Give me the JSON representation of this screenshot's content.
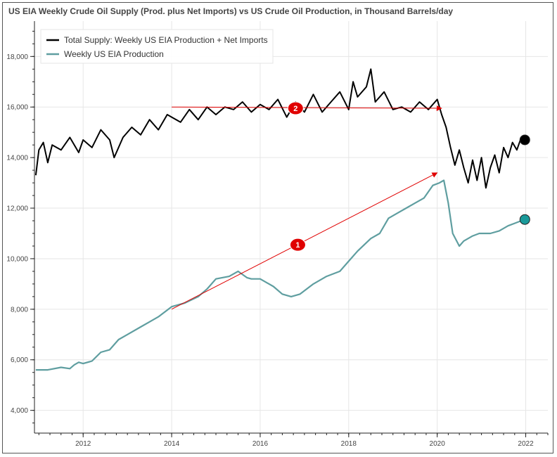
{
  "chart_data": {
    "type": "line",
    "title": "US EIA Weekly Crude Oil Supply (Prod. plus Net Imports) vs US Crude Oil Production, in Thousand Barrels/day",
    "xlabel": "",
    "ylabel": "",
    "xlim": [
      2010.9,
      2022.5
    ],
    "ylim": [
      3100,
      19400
    ],
    "grid": true,
    "legend_position": "top-left",
    "x_ticks": [
      2012,
      2014,
      2016,
      2018,
      2020,
      2022
    ],
    "y_ticks": [
      4000,
      6000,
      8000,
      10000,
      12000,
      14000,
      16000,
      18000
    ],
    "x_tick_labels": [
      "2012",
      "2014",
      "2016",
      "2018",
      "2020",
      "2022"
    ],
    "y_tick_labels": [
      "4,000",
      "6,000",
      "8,000",
      "10,000",
      "12,000",
      "14,000",
      "16,000",
      "18,000"
    ],
    "series": [
      {
        "name": "Total Supply: Weekly US EIA Production +  Net Imports",
        "color": "#000000",
        "x": [
          2010.93,
          2011.0,
          2011.1,
          2011.2,
          2011.3,
          2011.5,
          2011.7,
          2011.9,
          2012.0,
          2012.2,
          2012.4,
          2012.6,
          2012.7,
          2012.9,
          2013.1,
          2013.3,
          2013.5,
          2013.7,
          2013.9,
          2014.0,
          2014.2,
          2014.4,
          2014.6,
          2014.8,
          2015.0,
          2015.2,
          2015.4,
          2015.6,
          2015.8,
          2016.0,
          2016.2,
          2016.4,
          2016.6,
          2016.8,
          2017.0,
          2017.2,
          2017.4,
          2017.6,
          2017.8,
          2018.0,
          2018.1,
          2018.2,
          2018.4,
          2018.5,
          2018.6,
          2018.8,
          2019.0,
          2019.2,
          2019.4,
          2019.6,
          2019.8,
          2020.0,
          2020.1,
          2020.2,
          2020.3,
          2020.4,
          2020.5,
          2020.6,
          2020.7,
          2020.8,
          2020.9,
          2021.0,
          2021.1,
          2021.2,
          2021.3,
          2021.4,
          2021.5,
          2021.6,
          2021.7,
          2021.8,
          2021.9
        ],
        "y": [
          13300,
          14300,
          14600,
          13800,
          14500,
          14300,
          14800,
          14200,
          14700,
          14400,
          15100,
          14700,
          14000,
          14800,
          15200,
          14900,
          15500,
          15100,
          15700,
          15600,
          15400,
          15900,
          15500,
          16000,
          15700,
          16000,
          15900,
          16200,
          15800,
          16100,
          15900,
          16300,
          15600,
          16200,
          15800,
          16500,
          15800,
          16200,
          16600,
          15900,
          17000,
          16400,
          16800,
          17500,
          16200,
          16600,
          15900,
          16000,
          15800,
          16200,
          15900,
          16300,
          15700,
          15200,
          14400,
          13700,
          14300,
          13600,
          13000,
          13900,
          13100,
          14000,
          12800,
          13600,
          14100,
          13400,
          14400,
          14000,
          14600,
          14300,
          14800
        ]
      },
      {
        "name": "Weekly US EIA Production",
        "color": "#5f9ea0",
        "x": [
          2010.93,
          2011.2,
          2011.5,
          2011.7,
          2011.8,
          2011.9,
          2012.0,
          2012.2,
          2012.4,
          2012.6,
          2012.8,
          2013.0,
          2013.3,
          2013.5,
          2013.7,
          2014.0,
          2014.3,
          2014.6,
          2014.8,
          2015.0,
          2015.3,
          2015.5,
          2015.7,
          2015.8,
          2016.0,
          2016.3,
          2016.5,
          2016.7,
          2016.9,
          2017.2,
          2017.5,
          2017.8,
          2018.0,
          2018.2,
          2018.5,
          2018.7,
          2018.9,
          2019.1,
          2019.3,
          2019.5,
          2019.7,
          2019.9,
          2020.05,
          2020.15,
          2020.25,
          2020.35,
          2020.5,
          2020.6,
          2020.8,
          2020.95,
          2021.2,
          2021.4,
          2021.6,
          2021.75,
          2021.9
        ],
        "y": [
          5600,
          5600,
          5700,
          5650,
          5800,
          5900,
          5850,
          5950,
          6300,
          6400,
          6800,
          7000,
          7300,
          7500,
          7700,
          8100,
          8250,
          8500,
          8800,
          9200,
          9300,
          9500,
          9250,
          9200,
          9200,
          8900,
          8600,
          8500,
          8600,
          9000,
          9300,
          9500,
          9900,
          10300,
          10800,
          11000,
          11600,
          11800,
          12000,
          12200,
          12400,
          12900,
          13000,
          13100,
          12200,
          11000,
          10500,
          10700,
          10900,
          11000,
          11000,
          11100,
          11300,
          11400,
          11500
        ]
      }
    ],
    "end_markers": [
      {
        "series": 0,
        "x": 2021.98,
        "y": 14700,
        "color": "#000000"
      },
      {
        "series": 1,
        "x": 2021.98,
        "y": 11550,
        "color": "#1a9a9a"
      }
    ],
    "annotations": [
      {
        "label": "1",
        "arrow_from": [
          2014.0,
          8000
        ],
        "arrow_to": [
          2020.0,
          13400
        ],
        "badge_at": [
          2016.85,
          10550
        ],
        "color": "#e00000"
      },
      {
        "label": "2",
        "arrow_from": [
          2014.0,
          16000
        ],
        "arrow_to": [
          2020.1,
          15950
        ],
        "badge_at": [
          2016.8,
          15950
        ],
        "color": "#e00000"
      }
    ]
  }
}
